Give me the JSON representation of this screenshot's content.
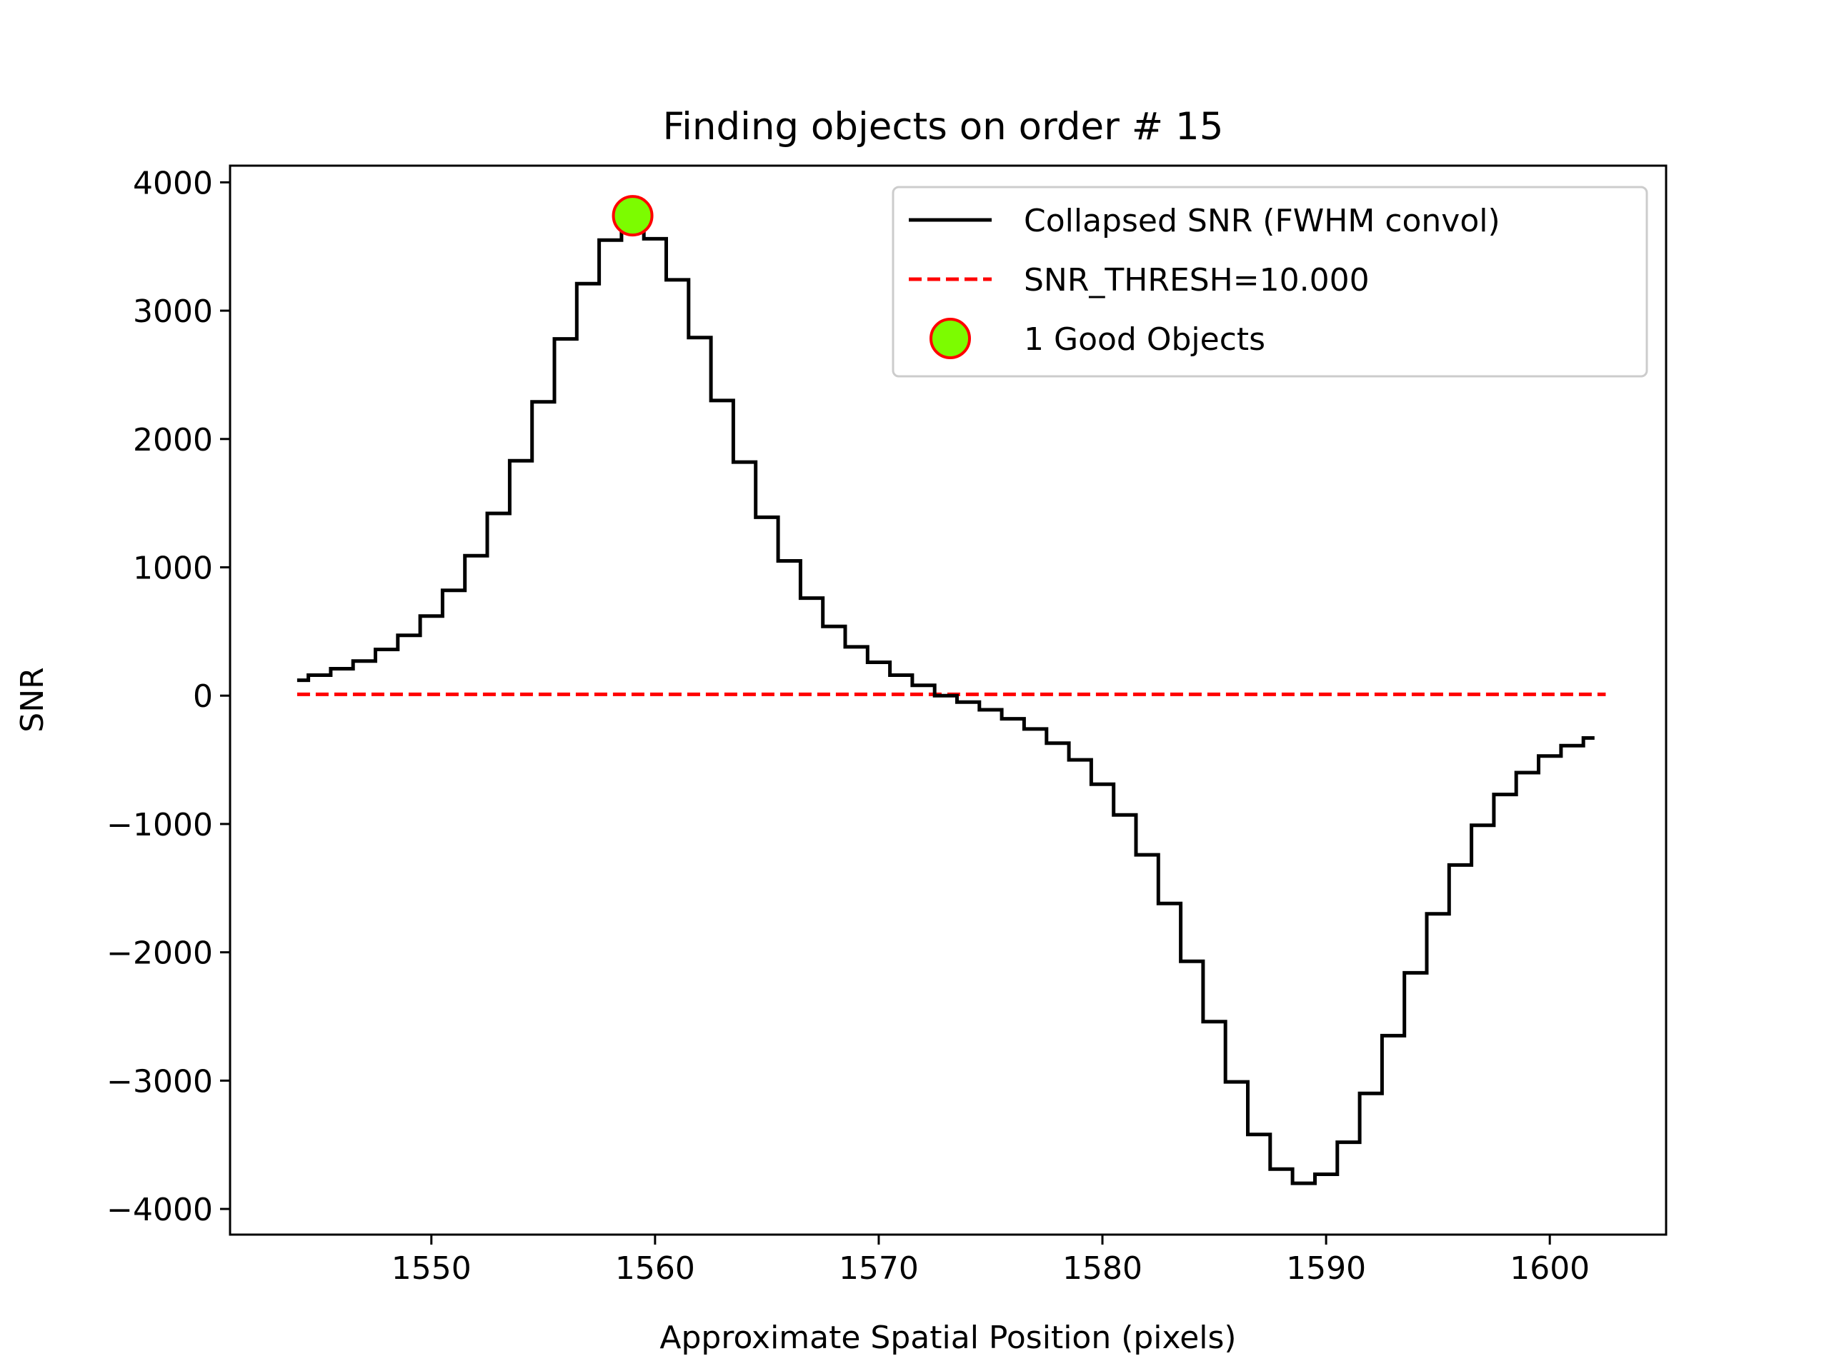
{
  "chart_data": {
    "type": "line",
    "title": "Finding objects on order # 15",
    "xlabel": "Approximate Spatial Position (pixels)",
    "ylabel": "SNR",
    "xlim": [
      1541,
      1605.2
    ],
    "ylim": [
      -4200,
      4130
    ],
    "xticks": [
      1550,
      1560,
      1570,
      1580,
      1590,
      1600
    ],
    "yticks": [
      -4000,
      -3000,
      -2000,
      -1000,
      0,
      1000,
      2000,
      3000,
      4000
    ],
    "xtick_labels": [
      "1550",
      "1560",
      "1570",
      "1580",
      "1590",
      "1600"
    ],
    "ytick_labels": [
      "−4000",
      "−3000",
      "−2000",
      "−1000",
      "0",
      "1000",
      "2000",
      "3000",
      "4000"
    ],
    "grid": false,
    "legend_position": "top-right",
    "series": [
      {
        "name": "Collapsed SNR (FWHM convol)",
        "style": "steps-mid",
        "color": "#000000",
        "x": [
          1544,
          1545,
          1546,
          1547,
          1548,
          1549,
          1550,
          1551,
          1552,
          1553,
          1554,
          1555,
          1556,
          1557,
          1558,
          1559,
          1560,
          1561,
          1562,
          1563,
          1564,
          1565,
          1566,
          1567,
          1568,
          1569,
          1570,
          1571,
          1572,
          1573,
          1574,
          1575,
          1576,
          1577,
          1578,
          1579,
          1580,
          1581,
          1582,
          1583,
          1584,
          1585,
          1586,
          1587,
          1588,
          1589,
          1590,
          1591,
          1592,
          1593,
          1594,
          1595,
          1596,
          1597,
          1598,
          1599,
          1600,
          1601,
          1602
        ],
        "y": [
          120,
          160,
          210,
          270,
          360,
          470,
          620,
          820,
          1090,
          1420,
          1830,
          2290,
          2780,
          3210,
          3550,
          3740,
          3560,
          3240,
          2790,
          2300,
          1820,
          1390,
          1050,
          760,
          540,
          380,
          260,
          160,
          80,
          0,
          -50,
          -110,
          -180,
          -260,
          -370,
          -500,
          -690,
          -930,
          -1240,
          -1620,
          -2070,
          -2540,
          -3010,
          -3420,
          -3690,
          -3800,
          -3730,
          -3480,
          -3100,
          -2650,
          -2160,
          -1700,
          -1320,
          -1010,
          -770,
          -600,
          -470,
          -390,
          -330
        ]
      },
      {
        "name": "SNR_THRESH=10.000",
        "style": "dashed",
        "color": "#ff0000",
        "x": [
          1544,
          1602.5
        ],
        "y": [
          10,
          10
        ]
      },
      {
        "name": "1 Good Objects",
        "style": "marker",
        "marker_fill": "#7cfc00",
        "marker_edge": "#ff0000",
        "x": [
          1559
        ],
        "y": [
          3740
        ]
      }
    ]
  }
}
